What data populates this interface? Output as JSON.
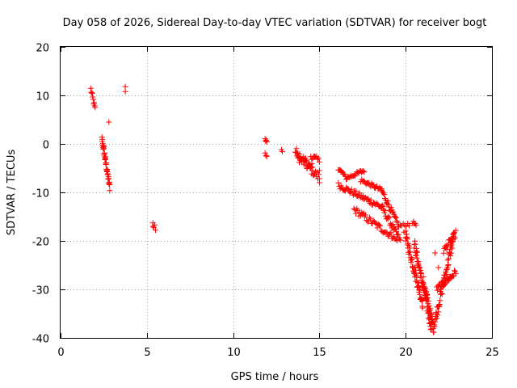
{
  "chart_data": {
    "type": "scatter",
    "title": "Day 058 of 2026, Sidereal Day-to-day VTEC variation (SDTVAR) for receiver bogt",
    "xlabel": "GPS time / hours",
    "ylabel": "SDTVAR / TECUs",
    "xlim": [
      0,
      25
    ],
    "ylim": [
      -40,
      20
    ],
    "xticks": [
      0,
      5,
      10,
      15,
      20,
      25
    ],
    "yticks": [
      20,
      10,
      0,
      -10,
      -20,
      -30,
      -40
    ],
    "grid": true,
    "marker": "+",
    "color": "#ff0000",
    "segments": [
      {
        "t0": 1.75,
        "t1": 2.0,
        "v0": 11.3,
        "v1": 7.2,
        "n": 10,
        "jitter": 0.5
      },
      {
        "t0": 2.4,
        "t1": 2.85,
        "v0": 1.0,
        "v1": -9.0,
        "n": 38,
        "jitter": 0.8
      },
      {
        "t0": 11.85,
        "t1": 11.95,
        "v0": 1.0,
        "v1": 0.5,
        "n": 4,
        "jitter": 0.3
      },
      {
        "t0": 11.85,
        "t1": 11.95,
        "v0": -2.0,
        "v1": -2.5,
        "n": 3,
        "jitter": 0.3
      },
      {
        "t0": 13.6,
        "t1": 14.6,
        "v0": -1.5,
        "v1": -5.0,
        "n": 28,
        "jitter": 0.9
      },
      {
        "t0": 13.7,
        "t1": 15.0,
        "v0": -2.5,
        "v1": -7.0,
        "n": 30,
        "jitter": 0.9
      },
      {
        "t0": 14.5,
        "t1": 15.0,
        "v0": -2.5,
        "v1": -3.5,
        "n": 10,
        "jitter": 0.6
      },
      {
        "t0": 16.1,
        "t1": 16.6,
        "v0": -5.0,
        "v1": -7.2,
        "n": 12,
        "jitter": 0.4
      },
      {
        "t0": 16.6,
        "t1": 17.6,
        "v0": -7.0,
        "v1": -5.5,
        "n": 20,
        "jitter": 0.4
      },
      {
        "t0": 16.1,
        "t1": 18.6,
        "v0": -8.5,
        "v1": -13.0,
        "n": 50,
        "jitter": 0.6
      },
      {
        "t0": 18.6,
        "t1": 19.7,
        "v0": -13.0,
        "v1": -20.0,
        "n": 28,
        "jitter": 0.7
      },
      {
        "t0": 17.0,
        "t1": 19.2,
        "v0": -13.5,
        "v1": -19.0,
        "n": 40,
        "jitter": 0.7
      },
      {
        "t0": 19.2,
        "t1": 19.5,
        "v0": -19.0,
        "v1": -20.0,
        "n": 6,
        "jitter": 0.5
      },
      {
        "t0": 17.4,
        "t1": 18.6,
        "v0": -7.5,
        "v1": -9.5,
        "n": 24,
        "jitter": 0.4
      },
      {
        "t0": 18.6,
        "t1": 19.6,
        "v0": -9.5,
        "v1": -17.0,
        "n": 26,
        "jitter": 0.6
      },
      {
        "t0": 19.6,
        "t1": 20.2,
        "v0": -17.0,
        "v1": -16.5,
        "n": 8,
        "jitter": 0.4
      },
      {
        "t0": 20.4,
        "t1": 20.6,
        "v0": -16.2,
        "v1": -16.5,
        "n": 5,
        "jitter": 0.3
      },
      {
        "t0": 20.0,
        "t1": 21.0,
        "v0": -19.0,
        "v1": -33.0,
        "n": 55,
        "jitter": 1.2
      },
      {
        "t0": 20.5,
        "t1": 21.5,
        "v0": -20.5,
        "v1": -38.0,
        "n": 60,
        "jitter": 1.2
      },
      {
        "t0": 21.0,
        "t1": 21.6,
        "v0": -28.0,
        "v1": -37.5,
        "n": 30,
        "jitter": 1.0
      },
      {
        "t0": 21.6,
        "t1": 22.8,
        "v0": -38.0,
        "v1": -19.0,
        "n": 60,
        "jitter": 1.2
      },
      {
        "t0": 21.8,
        "t1": 22.9,
        "v0": -30.0,
        "v1": -26.5,
        "n": 30,
        "jitter": 0.7
      },
      {
        "t0": 22.2,
        "t1": 22.9,
        "v0": -22.0,
        "v1": -18.5,
        "n": 20,
        "jitter": 0.7
      }
    ],
    "points": [
      {
        "t": 3.75,
        "v": 11.8
      },
      {
        "t": 3.75,
        "v": 10.8
      },
      {
        "t": 2.8,
        "v": 4.5
      },
      {
        "t": 5.35,
        "v": -16.3
      },
      {
        "t": 5.45,
        "v": -16.7
      },
      {
        "t": 5.4,
        "v": -17.2
      },
      {
        "t": 5.5,
        "v": -17.8
      },
      {
        "t": 5.35,
        "v": -17.0
      },
      {
        "t": 12.8,
        "v": -1.2
      },
      {
        "t": 12.85,
        "v": -1.6
      },
      {
        "t": 15.0,
        "v": -5.5
      },
      {
        "t": 15.0,
        "v": -8.0
      },
      {
        "t": 20.0,
        "v": -20.0
      },
      {
        "t": 19.9,
        "v": -18.2
      },
      {
        "t": 21.9,
        "v": -25.5
      },
      {
        "t": 21.7,
        "v": -22.5
      }
    ]
  }
}
